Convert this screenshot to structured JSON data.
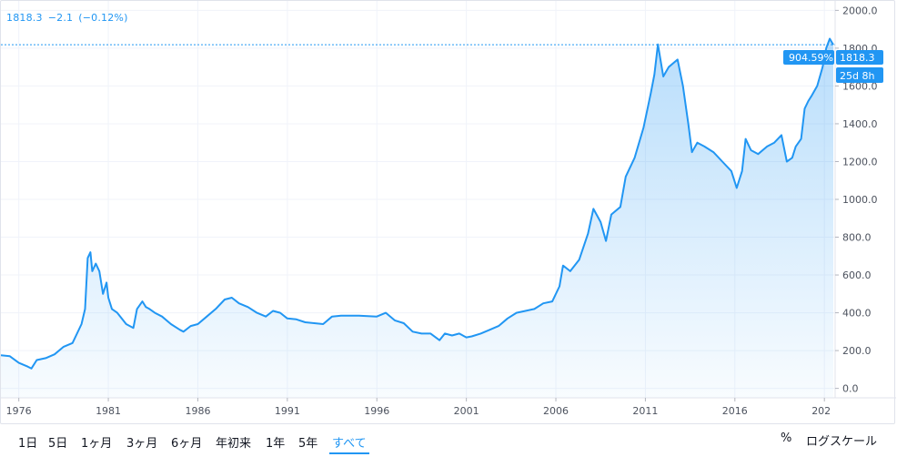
{
  "legend": {
    "price": "1818.3",
    "change": "−2.1",
    "change_pct": "(−0.12%)"
  },
  "price_tags": {
    "percent": "904.59%",
    "last": "1818.3",
    "countdown": "25d 8h"
  },
  "colors": {
    "line": "#2196f3",
    "tag_bg": "#2196f3",
    "grid": "#f0f3fa",
    "axis_text": "#4c525e"
  },
  "toolbar": {
    "ranges": [
      {
        "label": "1日"
      },
      {
        "label": "5日"
      },
      {
        "label": "1ヶ月"
      },
      {
        "label": "3ヶ月"
      },
      {
        "label": "6ヶ月"
      },
      {
        "label": "年初来"
      },
      {
        "label": "1年"
      },
      {
        "label": "5年"
      },
      {
        "label": "すべて"
      }
    ],
    "active_index": 8,
    "percent_label": "%",
    "log_label": "ログスケール"
  },
  "chart_data": {
    "type": "area",
    "xlabel": "",
    "ylabel": "",
    "ylim": [
      -50,
      2050
    ],
    "xlim": [
      1975,
      2021.6
    ],
    "yticks": [
      "0.0",
      "200.0",
      "400.0",
      "600.0",
      "800.0",
      "1000.0",
      "1200.0",
      "1400.0",
      "1600.0",
      "1800.0",
      "2000.0"
    ],
    "xticks": [
      "1976",
      "1981",
      "1986",
      "1991",
      "1996",
      "2001",
      "2006",
      "2011",
      "2016",
      "202"
    ],
    "grid": true,
    "legend": "none",
    "series": [
      {
        "x": [
          1975.0,
          1975.5,
          1976.0,
          1976.5,
          1976.7,
          1977.0,
          1977.5,
          1978.0,
          1978.5,
          1979.0,
          1979.5,
          1979.7,
          1979.85,
          1980.0,
          1980.1,
          1980.3,
          1980.5,
          1980.7,
          1980.9,
          1981.0,
          1981.2,
          1981.5,
          1982.0,
          1982.4,
          1982.6,
          1982.9,
          1983.1,
          1983.3,
          1983.6,
          1984.0,
          1984.5,
          1985.0,
          1985.2,
          1985.6,
          1986.0,
          1986.5,
          1987.0,
          1987.5,
          1987.9,
          1988.3,
          1988.8,
          1989.3,
          1989.8,
          1990.2,
          1990.6,
          1991.0,
          1991.5,
          1992.0,
          1992.5,
          1993.0,
          1993.5,
          1994.0,
          1995.0,
          1996.0,
          1996.5,
          1997.0,
          1997.5,
          1998.0,
          1998.5,
          1999.0,
          1999.5,
          1999.8,
          2000.2,
          2000.6,
          2001.0,
          2001.3,
          2001.8,
          2002.3,
          2002.8,
          2003.3,
          2003.8,
          2004.3,
          2004.8,
          2005.3,
          2005.8,
          2006.2,
          2006.4,
          2006.8,
          2007.3,
          2007.8,
          2008.1,
          2008.5,
          2008.8,
          2009.1,
          2009.6,
          2009.9,
          2010.4,
          2010.9,
          2011.3,
          2011.5,
          2011.7,
          2012.0,
          2012.3,
          2012.8,
          2013.1,
          2013.4,
          2013.6,
          2013.9,
          2014.3,
          2014.8,
          2015.3,
          2015.8,
          2016.1,
          2016.4,
          2016.6,
          2016.9,
          2017.3,
          2017.8,
          2018.2,
          2018.6,
          2018.9,
          2019.2,
          2019.4,
          2019.7,
          2019.9,
          2020.1,
          2020.3,
          2020.6,
          2020.9,
          2021.1,
          2021.3,
          2021.5
        ],
        "y": [
          175,
          170,
          135,
          115,
          105,
          150,
          160,
          180,
          220,
          240,
          340,
          420,
          690,
          720,
          620,
          660,
          620,
          500,
          560,
          480,
          420,
          400,
          340,
          320,
          420,
          460,
          430,
          420,
          400,
          380,
          340,
          310,
          300,
          330,
          340,
          380,
          420,
          470,
          480,
          450,
          430,
          400,
          380,
          410,
          400,
          370,
          365,
          350,
          345,
          340,
          380,
          385,
          385,
          380,
          400,
          360,
          345,
          300,
          290,
          290,
          255,
          290,
          280,
          290,
          270,
          275,
          290,
          310,
          330,
          370,
          400,
          410,
          420,
          450,
          460,
          540,
          650,
          620,
          680,
          820,
          950,
          880,
          780,
          920,
          960,
          1120,
          1220,
          1380,
          1560,
          1660,
          1820,
          1650,
          1700,
          1740,
          1600,
          1400,
          1250,
          1300,
          1280,
          1250,
          1200,
          1150,
          1060,
          1150,
          1320,
          1260,
          1240,
          1280,
          1300,
          1340,
          1200,
          1220,
          1280,
          1320,
          1480,
          1520,
          1550,
          1600,
          1700,
          1800,
          1850,
          1818
        ]
      }
    ]
  }
}
